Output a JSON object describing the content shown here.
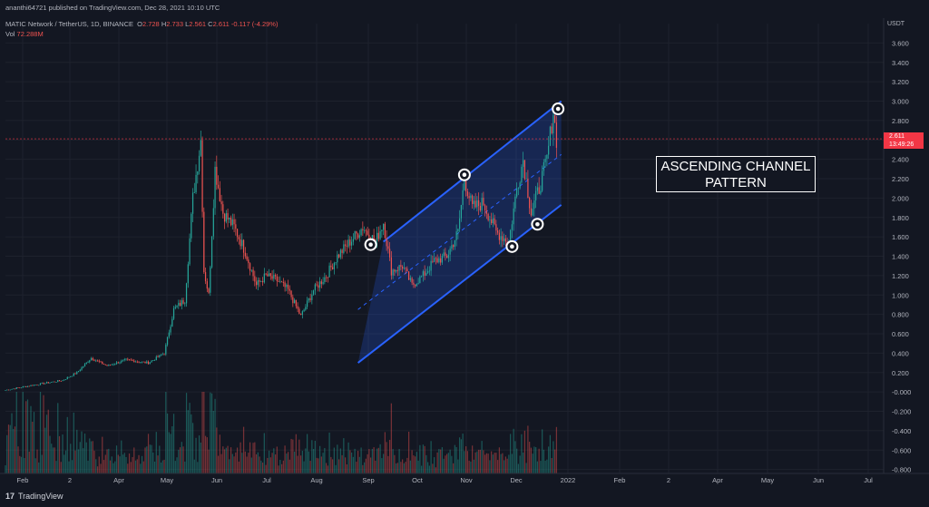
{
  "header": {
    "published": "ananthi64721 published on TradingView.com, Dec 28, 2021 10:10 UTC",
    "symbol": "MATIC Network / TetherUS, 1D, BINANCE",
    "ohlc": {
      "o_label": "O",
      "o": "2.728",
      "h_label": "H",
      "h": "2.733",
      "l_label": "L",
      "l": "2.561",
      "c_label": "C",
      "c": "2.611",
      "chg": "-0.117 (-4.29%)"
    },
    "vol_label": "Vol",
    "vol_value": "72.288M"
  },
  "price_tag": {
    "price": "2.611",
    "countdown": "13:49:26"
  },
  "annotation": {
    "line1": "ASCENDING CHANNEL",
    "line2": "PATTERN"
  },
  "footer": {
    "brand": "TradingView"
  },
  "colors": {
    "background": "#131722",
    "up": "#26a69a",
    "down": "#ef5350",
    "channel": "#2962ff",
    "price_line": "#f23645",
    "annotation": "#ffffff"
  },
  "chart_data": {
    "type": "candlestick",
    "currency_label": "USDT",
    "x_ticks": [
      "Feb",
      "2",
      "Apr",
      "May",
      "Jun",
      "Jul",
      "Aug",
      "Sep",
      "Oct",
      "Nov",
      "Dec",
      "2022",
      "Feb",
      "2",
      "Apr",
      "May",
      "Jun",
      "Jul"
    ],
    "y_ticks": [
      "3.600",
      "3.400",
      "3.200",
      "3.000",
      "2.800",
      "2.600",
      "2.400",
      "2.200",
      "2.000",
      "1.800",
      "1.600",
      "1.400",
      "1.200",
      "1.000",
      "0.800",
      "0.600",
      "0.400",
      "0.200",
      "-0.000",
      "-0.200",
      "-0.400",
      "-0.600",
      "-0.800"
    ],
    "ylim": [
      -0.85,
      3.8
    ],
    "last_price": 2.611,
    "price_path": [
      [
        "2021-01-15",
        0.02
      ],
      [
        "2021-02-01",
        0.07
      ],
      [
        "2021-02-20",
        0.12
      ],
      [
        "2021-03-01",
        0.2
      ],
      [
        "2021-03-10",
        0.35
      ],
      [
        "2021-03-20",
        0.27
      ],
      [
        "2021-04-01",
        0.33
      ],
      [
        "2021-04-15",
        0.3
      ],
      [
        "2021-04-25",
        0.4
      ],
      [
        "2021-05-01",
        0.85
      ],
      [
        "2021-05-08",
        0.95
      ],
      [
        "2021-05-13",
        2.0
      ],
      [
        "2021-05-18",
        2.6
      ],
      [
        "2021-05-20",
        1.25
      ],
      [
        "2021-05-23",
        1.0
      ],
      [
        "2021-05-27",
        2.3
      ],
      [
        "2021-06-01",
        1.85
      ],
      [
        "2021-06-08",
        1.7
      ],
      [
        "2021-06-15",
        1.45
      ],
      [
        "2021-06-22",
        1.1
      ],
      [
        "2021-06-28",
        1.2
      ],
      [
        "2021-07-05",
        1.15
      ],
      [
        "2021-07-12",
        1.05
      ],
      [
        "2021-07-20",
        0.78
      ],
      [
        "2021-07-28",
        1.05
      ],
      [
        "2021-08-05",
        1.2
      ],
      [
        "2021-08-12",
        1.4
      ],
      [
        "2021-08-20",
        1.55
      ],
      [
        "2021-08-28",
        1.7
      ],
      [
        "2021-09-05",
        1.55
      ],
      [
        "2021-09-10",
        1.75
      ],
      [
        "2021-09-15",
        1.25
      ],
      [
        "2021-09-22",
        1.3
      ],
      [
        "2021-09-28",
        1.1
      ],
      [
        "2021-10-05",
        1.2
      ],
      [
        "2021-10-12",
        1.35
      ],
      [
        "2021-10-20",
        1.4
      ],
      [
        "2021-10-27",
        1.65
      ],
      [
        "2021-10-31",
        2.2
      ],
      [
        "2021-11-05",
        1.9
      ],
      [
        "2021-11-12",
        1.95
      ],
      [
        "2021-11-20",
        1.65
      ],
      [
        "2021-11-28",
        1.55
      ],
      [
        "2021-12-03",
        2.1
      ],
      [
        "2021-12-07",
        2.4
      ],
      [
        "2021-12-12",
        1.85
      ],
      [
        "2021-12-17",
        2.1
      ],
      [
        "2021-12-22",
        2.4
      ],
      [
        "2021-12-26",
        2.9
      ],
      [
        "2021-12-28",
        2.61
      ]
    ],
    "channel": {
      "upper": [
        [
          "2021-09-10",
          1.55
        ],
        [
          "2021-12-31",
          3.0
        ]
      ],
      "lower": [
        [
          "2021-08-25",
          0.3
        ],
        [
          "2021-12-31",
          1.93
        ]
      ],
      "mid": [
        [
          "2021-08-25",
          0.85
        ],
        [
          "2021-12-31",
          2.45
        ]
      ]
    },
    "touch_points": [
      [
        "2021-09-02",
        1.52
      ],
      [
        "2021-10-31",
        2.24
      ],
      [
        "2021-11-30",
        1.5
      ],
      [
        "2021-12-16",
        1.73
      ],
      [
        "2021-12-29",
        2.92
      ]
    ],
    "volume": {
      "axis_color": "#b2b5be"
    }
  }
}
